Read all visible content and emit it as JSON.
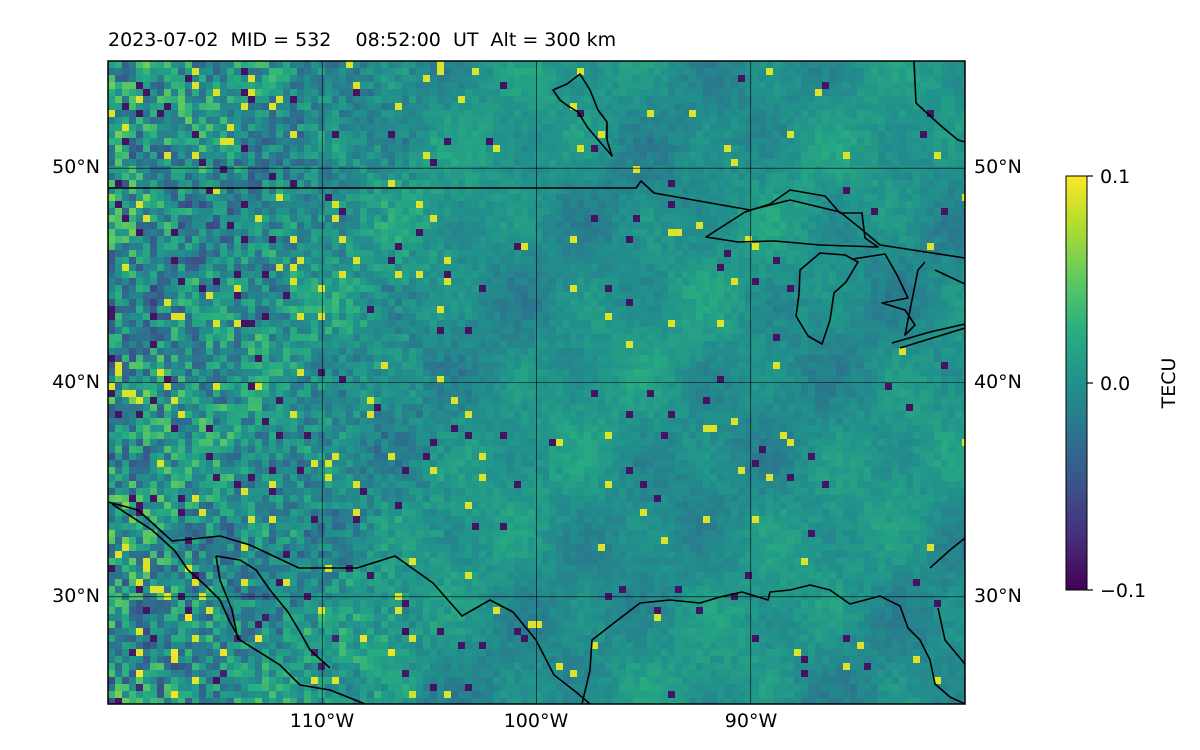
{
  "title": "2023-07-02  MID = 532    08:52:00  UT  Alt = 300 km",
  "map": {
    "lon_range": [
      -120,
      -80
    ],
    "lat_range": [
      25,
      55
    ],
    "lat_ticks": [
      {
        "value": 50,
        "label": "50°N"
      },
      {
        "value": 40,
        "label": "40°N"
      },
      {
        "value": 30,
        "label": "30°N"
      }
    ],
    "lon_ticks": [
      {
        "value": -110,
        "label": "110°W"
      },
      {
        "value": -100,
        "label": "100°W"
      },
      {
        "value": -90,
        "label": "90°W"
      }
    ],
    "colormap": "viridis",
    "colors": {
      "low": "#440154",
      "mid": "#21918c",
      "high": "#fde725"
    }
  },
  "colorbar": {
    "label": "TECU",
    "min": -0.1,
    "max": 0.1,
    "ticks": [
      {
        "value": 0.1,
        "label": "0.1"
      },
      {
        "value": 0.0,
        "label": "0.0"
      },
      {
        "value": -0.1,
        "label": "−0.1"
      }
    ]
  }
}
